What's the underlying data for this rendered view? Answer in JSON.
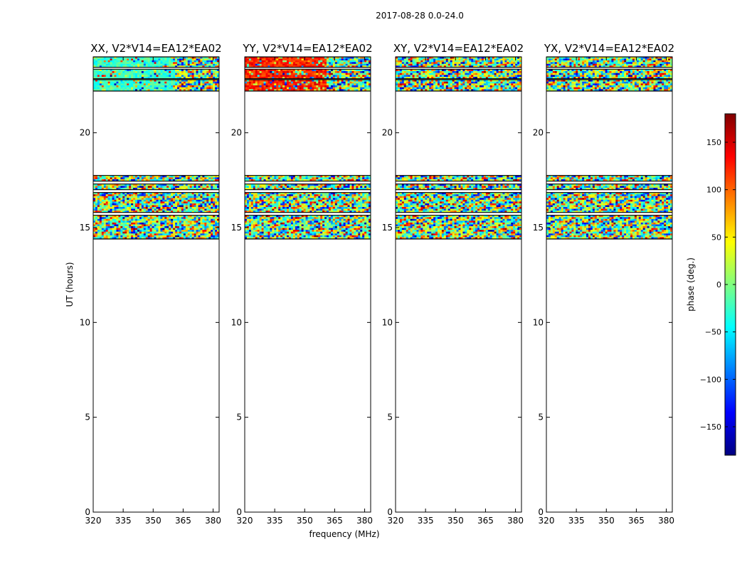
{
  "figure": {
    "suptitle": "2017-08-28 0.0-24.0",
    "xlabel": "frequency (MHz)",
    "ylabel": "UT (hours)"
  },
  "chart_data": {
    "type": "heatmap",
    "title": "2017-08-28 0.0-24.0",
    "xlabel": "frequency (MHz)",
    "ylabel": "UT (hours)",
    "xlim": [
      320,
      383
    ],
    "ylim": [
      0,
      24
    ],
    "xticks": [
      320,
      335,
      350,
      365,
      380
    ],
    "yticks": [
      0,
      5,
      10,
      15,
      20
    ],
    "colormap": "jet",
    "panels": [
      {
        "title": "XX, V2*V14=EA12*EA02",
        "dominant_phase": -25,
        "top_band_split_mhz": 361
      },
      {
        "title": "YY, V2*V14=EA12*EA02",
        "dominant_phase": 125,
        "top_band_split_mhz": 361
      },
      {
        "title": "XY, V2*V14=EA12*EA02",
        "dominant_phase": null,
        "top_band_split_mhz": null
      },
      {
        "title": "YX, V2*V14=EA12*EA02",
        "dominant_phase": null,
        "top_band_split_mhz": null
      }
    ],
    "data_ut_blocks": [
      {
        "start": 14.4,
        "end": 15.65
      },
      {
        "start": 15.8,
        "end": 16.85
      },
      {
        "start": 17.0,
        "end": 17.3
      },
      {
        "start": 17.45,
        "end": 17.75
      },
      {
        "start": 22.2,
        "end": 22.8
      },
      {
        "start": 22.85,
        "end": 23.35
      },
      {
        "start": 23.45,
        "end": 24.0
      }
    ],
    "colorbar": {
      "label": "phase (deg.)",
      "range": [
        -180,
        180
      ],
      "ticks": [
        150,
        100,
        50,
        0,
        -50,
        -100,
        -150
      ],
      "tick_labels": [
        "150",
        "100",
        "50",
        "0",
        "−50",
        "−100",
        "−150"
      ],
      "colors": [
        "#000080",
        "#0000ff",
        "#0080ff",
        "#00ffff",
        "#80ff80",
        "#ffff00",
        "#ff8000",
        "#ff0000",
        "#800000"
      ]
    }
  }
}
